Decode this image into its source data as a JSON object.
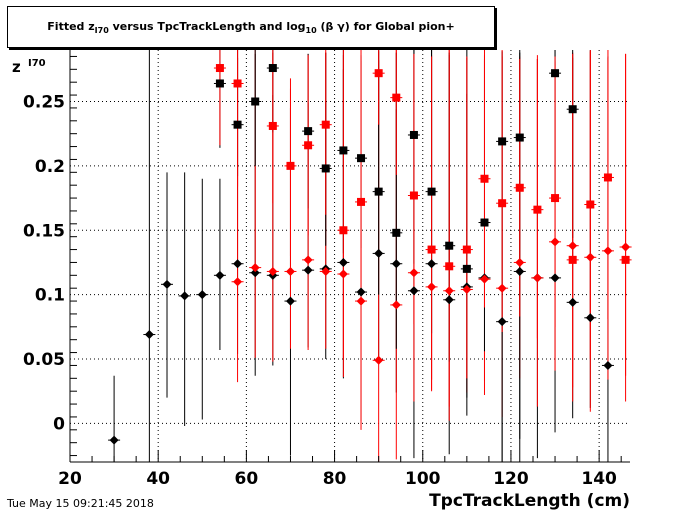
{
  "chart_data": {
    "type": "scatter",
    "title_parts": {
      "prefix": "Fitted  z",
      "z_sub": "I70",
      "middle": "  versus TpcTrackLength and log",
      "log_sub": "10",
      "suffix": " (β γ) for Global pion+"
    },
    "xlabel": "TpcTrackLength (cm)",
    "ylabel": "z",
    "ylabel_sub": "I70",
    "timestamp": "Tue May 15 09:21:45 2018",
    "xlim": [
      20,
      147
    ],
    "ylim": [
      -0.03,
      0.29
    ],
    "xticks": [
      20,
      40,
      60,
      80,
      100,
      120,
      140
    ],
    "yticks": [
      0,
      0.05,
      0.1,
      0.15,
      0.2,
      0.25
    ],
    "ytick_labels": [
      "0",
      "0.05",
      "0.1",
      "0.15",
      "0.2",
      "0.25"
    ],
    "grid": true,
    "series": [
      {
        "marker": "diamond",
        "color": "#000000",
        "points": [
          {
            "x": 30,
            "y": -0.013,
            "yerr": [
              0.05,
              0.05
            ]
          },
          {
            "x": 38,
            "y": 0.069,
            "yerr": [
              0.1,
              0.23
            ]
          },
          {
            "x": 42,
            "y": 0.108,
            "yerr": [
              0.088,
              0.087
            ]
          },
          {
            "x": 46,
            "y": 0.099,
            "yerr": [
              0.101,
              0.096
            ]
          },
          {
            "x": 50,
            "y": 0.1,
            "yerr": [
              0.097,
              0.09
            ]
          },
          {
            "x": 54,
            "y": 0.115,
            "yerr": [
              0.058,
              0.075
            ]
          },
          {
            "x": 58,
            "y": 0.124,
            "yerr": [
              0.07,
              0.16
            ]
          },
          {
            "x": 62,
            "y": 0.117,
            "yerr": [
              0.08,
              0.17
            ]
          },
          {
            "x": 66,
            "y": 0.115,
            "yerr": [
              0.07,
              0.14
            ]
          },
          {
            "x": 70,
            "y": 0.095,
            "yerr": [
              0.12,
              0.15
            ]
          },
          {
            "x": 74,
            "y": 0.119,
            "yerr": [
              0.06,
              0.13
            ]
          },
          {
            "x": 78,
            "y": 0.12,
            "yerr": [
              0.07,
              0.13
            ]
          },
          {
            "x": 82,
            "y": 0.125,
            "yerr": [
              0.09,
              0.15
            ]
          },
          {
            "x": 86,
            "y": 0.102,
            "yerr": [
              0.1,
              0.18
            ]
          },
          {
            "x": 90,
            "y": 0.132,
            "yerr": [
              0.08,
              0.15
            ]
          },
          {
            "x": 94,
            "y": 0.124,
            "yerr": [
              0.1,
              0.12
            ]
          },
          {
            "x": 98,
            "y": 0.103,
            "yerr": [
              0.13,
              0.2
            ]
          },
          {
            "x": 102,
            "y": 0.124,
            "yerr": [
              0.09,
              0.17
            ]
          },
          {
            "x": 106,
            "y": 0.096,
            "yerr": [
              0.12,
              0.19
            ]
          },
          {
            "x": 110,
            "y": 0.106,
            "yerr": [
              0.1,
              0.15
            ]
          },
          {
            "x": 114,
            "y": 0.113,
            "yerr": [
              0.08,
              0.17
            ]
          },
          {
            "x": 118,
            "y": 0.079,
            "yerr": [
              0.13,
              0.21
            ]
          },
          {
            "x": 122,
            "y": 0.118,
            "yerr": [
              0.13,
              0.17
            ]
          },
          {
            "x": 126,
            "y": 0.113,
            "yerr": [
              0.14,
              0.17
            ]
          },
          {
            "x": 130,
            "y": 0.113,
            "yerr": [
              0.12,
              0.18
            ]
          },
          {
            "x": 134,
            "y": 0.094,
            "yerr": [
              0.09,
              0.19
            ]
          },
          {
            "x": 138,
            "y": 0.082,
            "yerr": [
              0.07,
              0.21
            ]
          },
          {
            "x": 142,
            "y": 0.045,
            "yerr": [
              0.08,
              0.24
            ]
          }
        ]
      },
      {
        "marker": "diamond",
        "color": "#ff0000",
        "points": [
          {
            "x": 58,
            "y": 0.11,
            "yerr": [
              0.078,
              0.18
            ]
          },
          {
            "x": 62,
            "y": 0.121,
            "yerr": [
              0.07,
              0.17
            ]
          },
          {
            "x": 66,
            "y": 0.118,
            "yerr": [
              0.07,
              0.17
            ]
          },
          {
            "x": 70,
            "y": 0.118,
            "yerr": [
              0.06,
              0.15
            ]
          },
          {
            "x": 74,
            "y": 0.127,
            "yerr": [
              0.07,
              0.16
            ]
          },
          {
            "x": 78,
            "y": 0.118,
            "yerr": [
              0.06,
              0.17
            ]
          },
          {
            "x": 82,
            "y": 0.116,
            "yerr": [
              0.08,
              0.17
            ]
          },
          {
            "x": 86,
            "y": 0.095,
            "yerr": [
              0.1,
              0.19
            ]
          },
          {
            "x": 90,
            "y": 0.049,
            "yerr": [
              0.08,
              0.24
            ]
          },
          {
            "x": 94,
            "y": 0.092,
            "yerr": [
              0.12,
              0.2
            ]
          },
          {
            "x": 98,
            "y": 0.117,
            "yerr": [
              0.1,
              0.17
            ]
          },
          {
            "x": 102,
            "y": 0.106,
            "yerr": [
              0.08,
              0.18
            ]
          },
          {
            "x": 106,
            "y": 0.103,
            "yerr": [
              0.09,
              0.19
            ]
          },
          {
            "x": 110,
            "y": 0.104,
            "yerr": [
              0.08,
              0.18
            ]
          },
          {
            "x": 114,
            "y": 0.112,
            "yerr": [
              0.09,
              0.17
            ]
          },
          {
            "x": 118,
            "y": 0.105,
            "yerr": [
              0.1,
              0.18
            ]
          },
          {
            "x": 122,
            "y": 0.125,
            "yerr": [
              0.09,
              0.16
            ]
          },
          {
            "x": 126,
            "y": 0.113,
            "yerr": [
              0.1,
              0.17
            ]
          },
          {
            "x": 130,
            "y": 0.141,
            "yerr": [
              0.1,
              0.14
            ]
          },
          {
            "x": 134,
            "y": 0.138,
            "yerr": [
              0.11,
              0.15
            ]
          },
          {
            "x": 138,
            "y": 0.129,
            "yerr": [
              0.12,
              0.16
            ]
          },
          {
            "x": 142,
            "y": 0.134,
            "yerr": [
              0.1,
              0.15
            ]
          },
          {
            "x": 146,
            "y": 0.137,
            "yerr": [
              0.1,
              0.15
            ]
          }
        ]
      },
      {
        "marker": "square",
        "color": "#000000",
        "points": [
          {
            "x": 54,
            "y": 0.264,
            "yerr": [
              0.05,
              0.03
            ]
          },
          {
            "x": 58,
            "y": 0.232,
            "yerr": [
              0.04,
              0.06
            ]
          },
          {
            "x": 62,
            "y": 0.25,
            "yerr": [
              0.05,
              0.04
            ]
          },
          {
            "x": 66,
            "y": 0.276,
            "yerr": [
              0.05,
              0.02
            ]
          },
          {
            "x": 74,
            "y": 0.227,
            "yerr": [
              0.06,
              0.06
            ]
          },
          {
            "x": 78,
            "y": 0.198,
            "yerr": [
              0.06,
              0.09
            ]
          },
          {
            "x": 82,
            "y": 0.212,
            "yerr": [
              0.08,
              0.08
            ]
          },
          {
            "x": 86,
            "y": 0.206,
            "yerr": [
              0.07,
              0.08
            ]
          },
          {
            "x": 90,
            "y": 0.18,
            "yerr": [
              0.08,
              0.11
            ]
          },
          {
            "x": 94,
            "y": 0.148,
            "yerr": [
              0.09,
              0.14
            ]
          },
          {
            "x": 98,
            "y": 0.224,
            "yerr": [
              0.1,
              0.07
            ]
          },
          {
            "x": 102,
            "y": 0.18,
            "yerr": [
              0.11,
              0.11
            ]
          },
          {
            "x": 106,
            "y": 0.138,
            "yerr": [
              0.09,
              0.15
            ]
          },
          {
            "x": 110,
            "y": 0.12,
            "yerr": [
              0.1,
              0.17
            ]
          },
          {
            "x": 114,
            "y": 0.156,
            "yerr": [
              0.1,
              0.13
            ]
          },
          {
            "x": 118,
            "y": 0.219,
            "yerr": [
              0.26,
              0.07
            ]
          },
          {
            "x": 122,
            "y": 0.222,
            "yerr": [
              0.26,
              0.07
            ]
          },
          {
            "x": 130,
            "y": 0.272,
            "yerr": [
              0.1,
              0.02
            ]
          },
          {
            "x": 134,
            "y": 0.244,
            "yerr": [
              0.1,
              0.05
            ]
          }
        ]
      },
      {
        "marker": "square",
        "color": "#ff0000",
        "points": [
          {
            "x": 54,
            "y": 0.276,
            "yerr": [
              0.06,
              0.02
            ]
          },
          {
            "x": 58,
            "y": 0.264,
            "yerr": [
              0.08,
              0.03
            ]
          },
          {
            "x": 66,
            "y": 0.231,
            "yerr": [
              0.06,
              0.06
            ]
          },
          {
            "x": 70,
            "y": 0.2,
            "yerr": [
              0.07,
              0.06
            ]
          },
          {
            "x": 74,
            "y": 0.216,
            "yerr": [
              0.07,
              0.07
            ]
          },
          {
            "x": 78,
            "y": 0.232,
            "yerr": [
              0.07,
              0.06
            ]
          },
          {
            "x": 82,
            "y": 0.15,
            "yerr": [
              0.1,
              0.14
            ]
          },
          {
            "x": 86,
            "y": 0.172,
            "yerr": [
              0.08,
              0.12
            ]
          },
          {
            "x": 90,
            "y": 0.272,
            "yerr": [
              0.04,
              0.02
            ]
          },
          {
            "x": 94,
            "y": 0.253,
            "yerr": [
              0.06,
              0.04
            ]
          },
          {
            "x": 98,
            "y": 0.177,
            "yerr": [
              0.1,
              0.11
            ]
          },
          {
            "x": 102,
            "y": 0.135,
            "yerr": [
              0.11,
              0.15
            ]
          },
          {
            "x": 106,
            "y": 0.122,
            "yerr": [
              0.12,
              0.17
            ]
          },
          {
            "x": 110,
            "y": 0.135,
            "yerr": [
              0.1,
              0.15
            ]
          },
          {
            "x": 114,
            "y": 0.19,
            "yerr": [
              0.1,
              0.1
            ]
          },
          {
            "x": 118,
            "y": 0.171,
            "yerr": [
              0.1,
              0.12
            ]
          },
          {
            "x": 122,
            "y": 0.183,
            "yerr": [
              0.1,
              0.1
            ]
          },
          {
            "x": 126,
            "y": 0.166,
            "yerr": [
              0.1,
              0.12
            ]
          },
          {
            "x": 130,
            "y": 0.175,
            "yerr": [
              0.1,
              0.11
            ]
          },
          {
            "x": 134,
            "y": 0.127,
            "yerr": [
              0.11,
              0.16
            ]
          },
          {
            "x": 138,
            "y": 0.17,
            "yerr": [
              0.12,
              0.12
            ]
          },
          {
            "x": 142,
            "y": 0.191,
            "yerr": [
              0.11,
              0.1
            ]
          },
          {
            "x": 146,
            "y": 0.127,
            "yerr": [
              0.11,
              0.16
            ]
          }
        ]
      }
    ]
  }
}
